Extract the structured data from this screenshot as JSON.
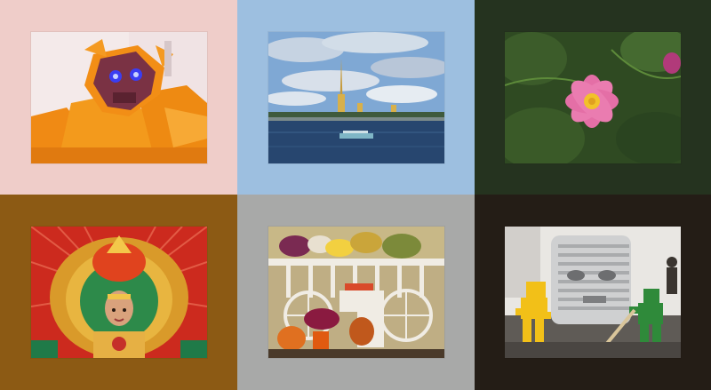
{
  "tiles": [
    {
      "bg": "#efcdc9",
      "photo": "robot-head-sculpture"
    },
    {
      "bg": "#9dbfe0",
      "photo": "river-city-skyline"
    },
    {
      "bg": "#25331f",
      "photo": "pink-cosmos-flower"
    },
    {
      "bg": "#8c5a14",
      "photo": "ornate-costume-dancer"
    },
    {
      "bg": "#a8a9a8",
      "photo": "harvest-cart-pumpkins"
    },
    {
      "bg": "#241d16",
      "photo": "lego-sculpture-exhibit"
    }
  ]
}
